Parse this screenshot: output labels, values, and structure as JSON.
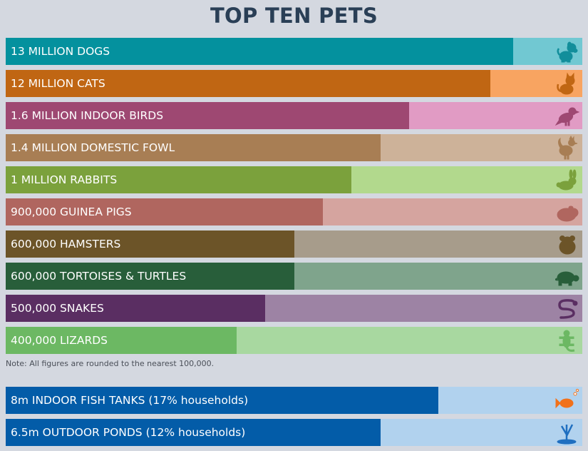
{
  "chart_data": {
    "type": "bar",
    "orientation": "horizontal",
    "title": "TOP TEN PETS",
    "note": "Note: All figures are rounded to the nearest 100,000.",
    "bars": [
      {
        "label": "13 MILLION DOGS",
        "value": 13000000,
        "fraction": 0.88,
        "fill": "#04919e",
        "track": "#71c8d2",
        "icon_color": "#128e9b",
        "icon": "dog-icon"
      },
      {
        "label": "12 MILLION CATS",
        "value": 12000000,
        "fraction": 0.84,
        "fill": "#c06613",
        "track": "#f8a461",
        "icon_color": "#c06613",
        "icon": "cat-icon"
      },
      {
        "label": "1.6 MILLION INDOOR BIRDS",
        "value": 1600000,
        "fraction": 0.7,
        "fill": "#9e4872",
        "track": "#e19bc4",
        "icon_color": "#9e4872",
        "icon": "bird-icon"
      },
      {
        "label": "1.4 MILLION DOMESTIC FOWL",
        "value": 1400000,
        "fraction": 0.65,
        "fill": "#a87e54",
        "track": "#cdb299",
        "icon_color": "#a87e54",
        "icon": "rooster-icon"
      },
      {
        "label": "1 MILLION RABBITS",
        "value": 1000000,
        "fraction": 0.6,
        "fill": "#7ba13c",
        "track": "#b2d98d",
        "icon_color": "#7ba13c",
        "icon": "rabbit-icon"
      },
      {
        "label": "900,000 GUINEA PIGS",
        "value": 900000,
        "fraction": 0.55,
        "fill": "#b0665f",
        "track": "#d5a49f",
        "icon_color": "#b0665f",
        "icon": "guinea-pig-icon"
      },
      {
        "label": "600,000 HAMSTERS",
        "value": 600000,
        "fraction": 0.5,
        "fill": "#6c5428",
        "track": "#a79c8b",
        "icon_color": "#6c5428",
        "icon": "hamster-icon"
      },
      {
        "label": "600,000 TORTOISES & TURTLES",
        "value": 600000,
        "fraction": 0.5,
        "fill": "#285e3a",
        "track": "#7fa48c",
        "icon_color": "#285e3a",
        "icon": "turtle-icon"
      },
      {
        "label": "500,000 SNAKES",
        "value": 500000,
        "fraction": 0.45,
        "fill": "#5a2e62",
        "track": "#9d83a4",
        "icon_color": "#5a2e62",
        "icon": "snake-icon"
      },
      {
        "label": "400,000 LIZARDS",
        "value": 400000,
        "fraction": 0.4,
        "fill": "#6cb863",
        "track": "#a8d8a0",
        "icon_color": "#6cb863",
        "icon": "lizard-icon"
      }
    ],
    "extra_bars": [
      {
        "label": "8m INDOOR FISH TANKS (17% households)",
        "value": 8000000,
        "fraction": 0.75,
        "fill": "#035ca8",
        "track": "#b1d2ee",
        "icon_color": "#f1711a",
        "icon": "fish-icon"
      },
      {
        "label": "6.5m OUTDOOR PONDS (12% households)",
        "value": 6500000,
        "fraction": 0.65,
        "fill": "#035ca8",
        "track": "#b1d2ee",
        "icon_color": "#1f6fc0",
        "icon": "pond-icon"
      }
    ]
  }
}
